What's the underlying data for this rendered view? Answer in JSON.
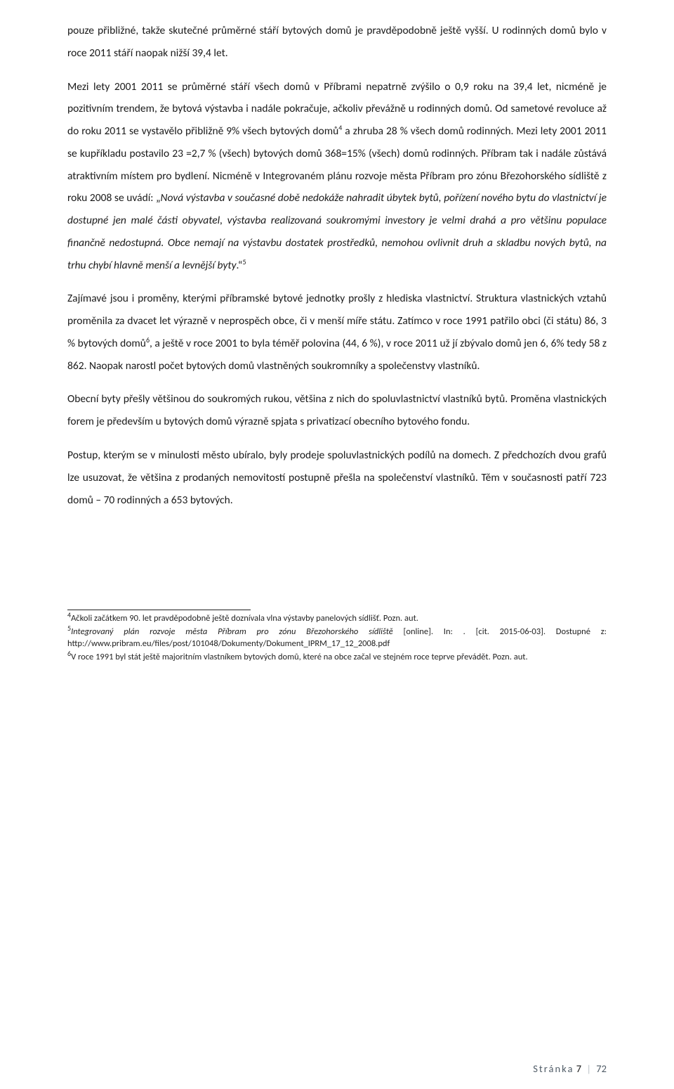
{
  "paragraphs": {
    "p1a": "pouze přibližné, takže skutečné průměrné stáří bytových domů je pravděpodobně ještě vyšší. U rodinných domů bylo v roce 2011 stáří naopak nižší 39,4 let.",
    "p1b_before_italic": "Mezi lety 2001 2011 se průměrné stáří všech domů v Příbrami nepatrně zvýšilo o 0,9 roku na 39,4 let, nicméně je pozitivním trendem, že bytová výstavba i nadále pokračuje, ačkoliv převážně u rodinných domů. Od sametové revoluce až do roku 2011 se vystavělo přibližně 9% všech bytových domů",
    "p1b_after_sup4": " a zhruba 28 % všech domů rodinných. Mezi lety 2001 2011 se kupříkladu postavilo 23 =2,7 % (všech) bytových domů 368=15% (všech) domů rodinných. Příbram tak i nadále zůstává atraktivním místem pro bydlení. Nicméně v Integrovaném plánu rozvoje města Příbram pro zónu Březohorského sídliště z roku 2008 se uvádí: „",
    "p1b_italic": "Nová výstavba v současné době nedokáže nahradit úbytek bytů, pořízení nového bytu do vlastnictví je dostupné jen malé části obyvatel, výstavba realizovaná soukromými investory je velmi drahá a pro většinu populace finančně nedostupná. Obce nemají na výstavbu dostatek prostředků, nemohou ovlivnit druh a skladbu nových bytů, na trhu chybí hlavně menší a levnější byty",
    "p1b_close": ".“",
    "sup4": "4",
    "sup5": "5",
    "p2_before_sup6": "Zajímavé jsou i proměny, kterými příbramské bytové jednotky prošly z hlediska vlastnictví. Struktura vlastnických vztahů proměnila za dvacet let výrazně v neprospěch obce, či v menší míře státu. Zatímco v roce 1991 patřilo obci (či státu) 86, 3 % bytových domů",
    "sup6": "6",
    "p2_after_sup6": ", a ještě v roce 2001 to byla téměř polovina (44, 6 %), v roce 2011 už jí zbývalo domů jen 6, 6% tedy 58 z 862. Naopak narostl počet bytových domů vlastněných soukromníky a společenstvy vlastníků.",
    "p3": "Obecní byty přešly většinou do soukromých rukou, většina z nich do spoluvlastnictví vlastníků bytů.  Proměna vlastnických forem je především u bytových domů výrazně spjata s privatizací obecního bytového fondu.",
    "p4": "Postup, kterým se v minulosti město ubíralo, byly prodeje spoluvlastnických podílů na domech. Z předchozích dvou grafů lze usuzovat, že většina z prodaných nemovitostí postupně přešla na společenství vlastníků. Těm v současnosti patří 723 domů – 70 rodinných a 653 bytových."
  },
  "footnotes": {
    "f4_mark": "4",
    "f4_text": "Ačkoli začátkem 90. let pravděpodobně ještě doznívala vlna výstavby panelových sídlišť. Pozn. aut.",
    "f5_mark": "5",
    "f5_italic": "Integrovaný plán rozvoje města Příbram pro zónu Březohorského sídliště",
    "f5_rest": " [online]. In: . [cit. 2015-06-03]. Dostupné z: http://www.pribram.eu/files/post/101048/Dokumenty/Dokument_IPRM_17_12_2008.pdf",
    "f6_mark": "6",
    "f6_text": "V roce 1991 byl stát ještě majoritním vlastníkem bytových domů, které na obce začal ve stejném roce teprve převádět. Pozn. aut."
  },
  "footer": {
    "label": "Stránka",
    "current": "7",
    "sep": "|",
    "total": "72"
  }
}
